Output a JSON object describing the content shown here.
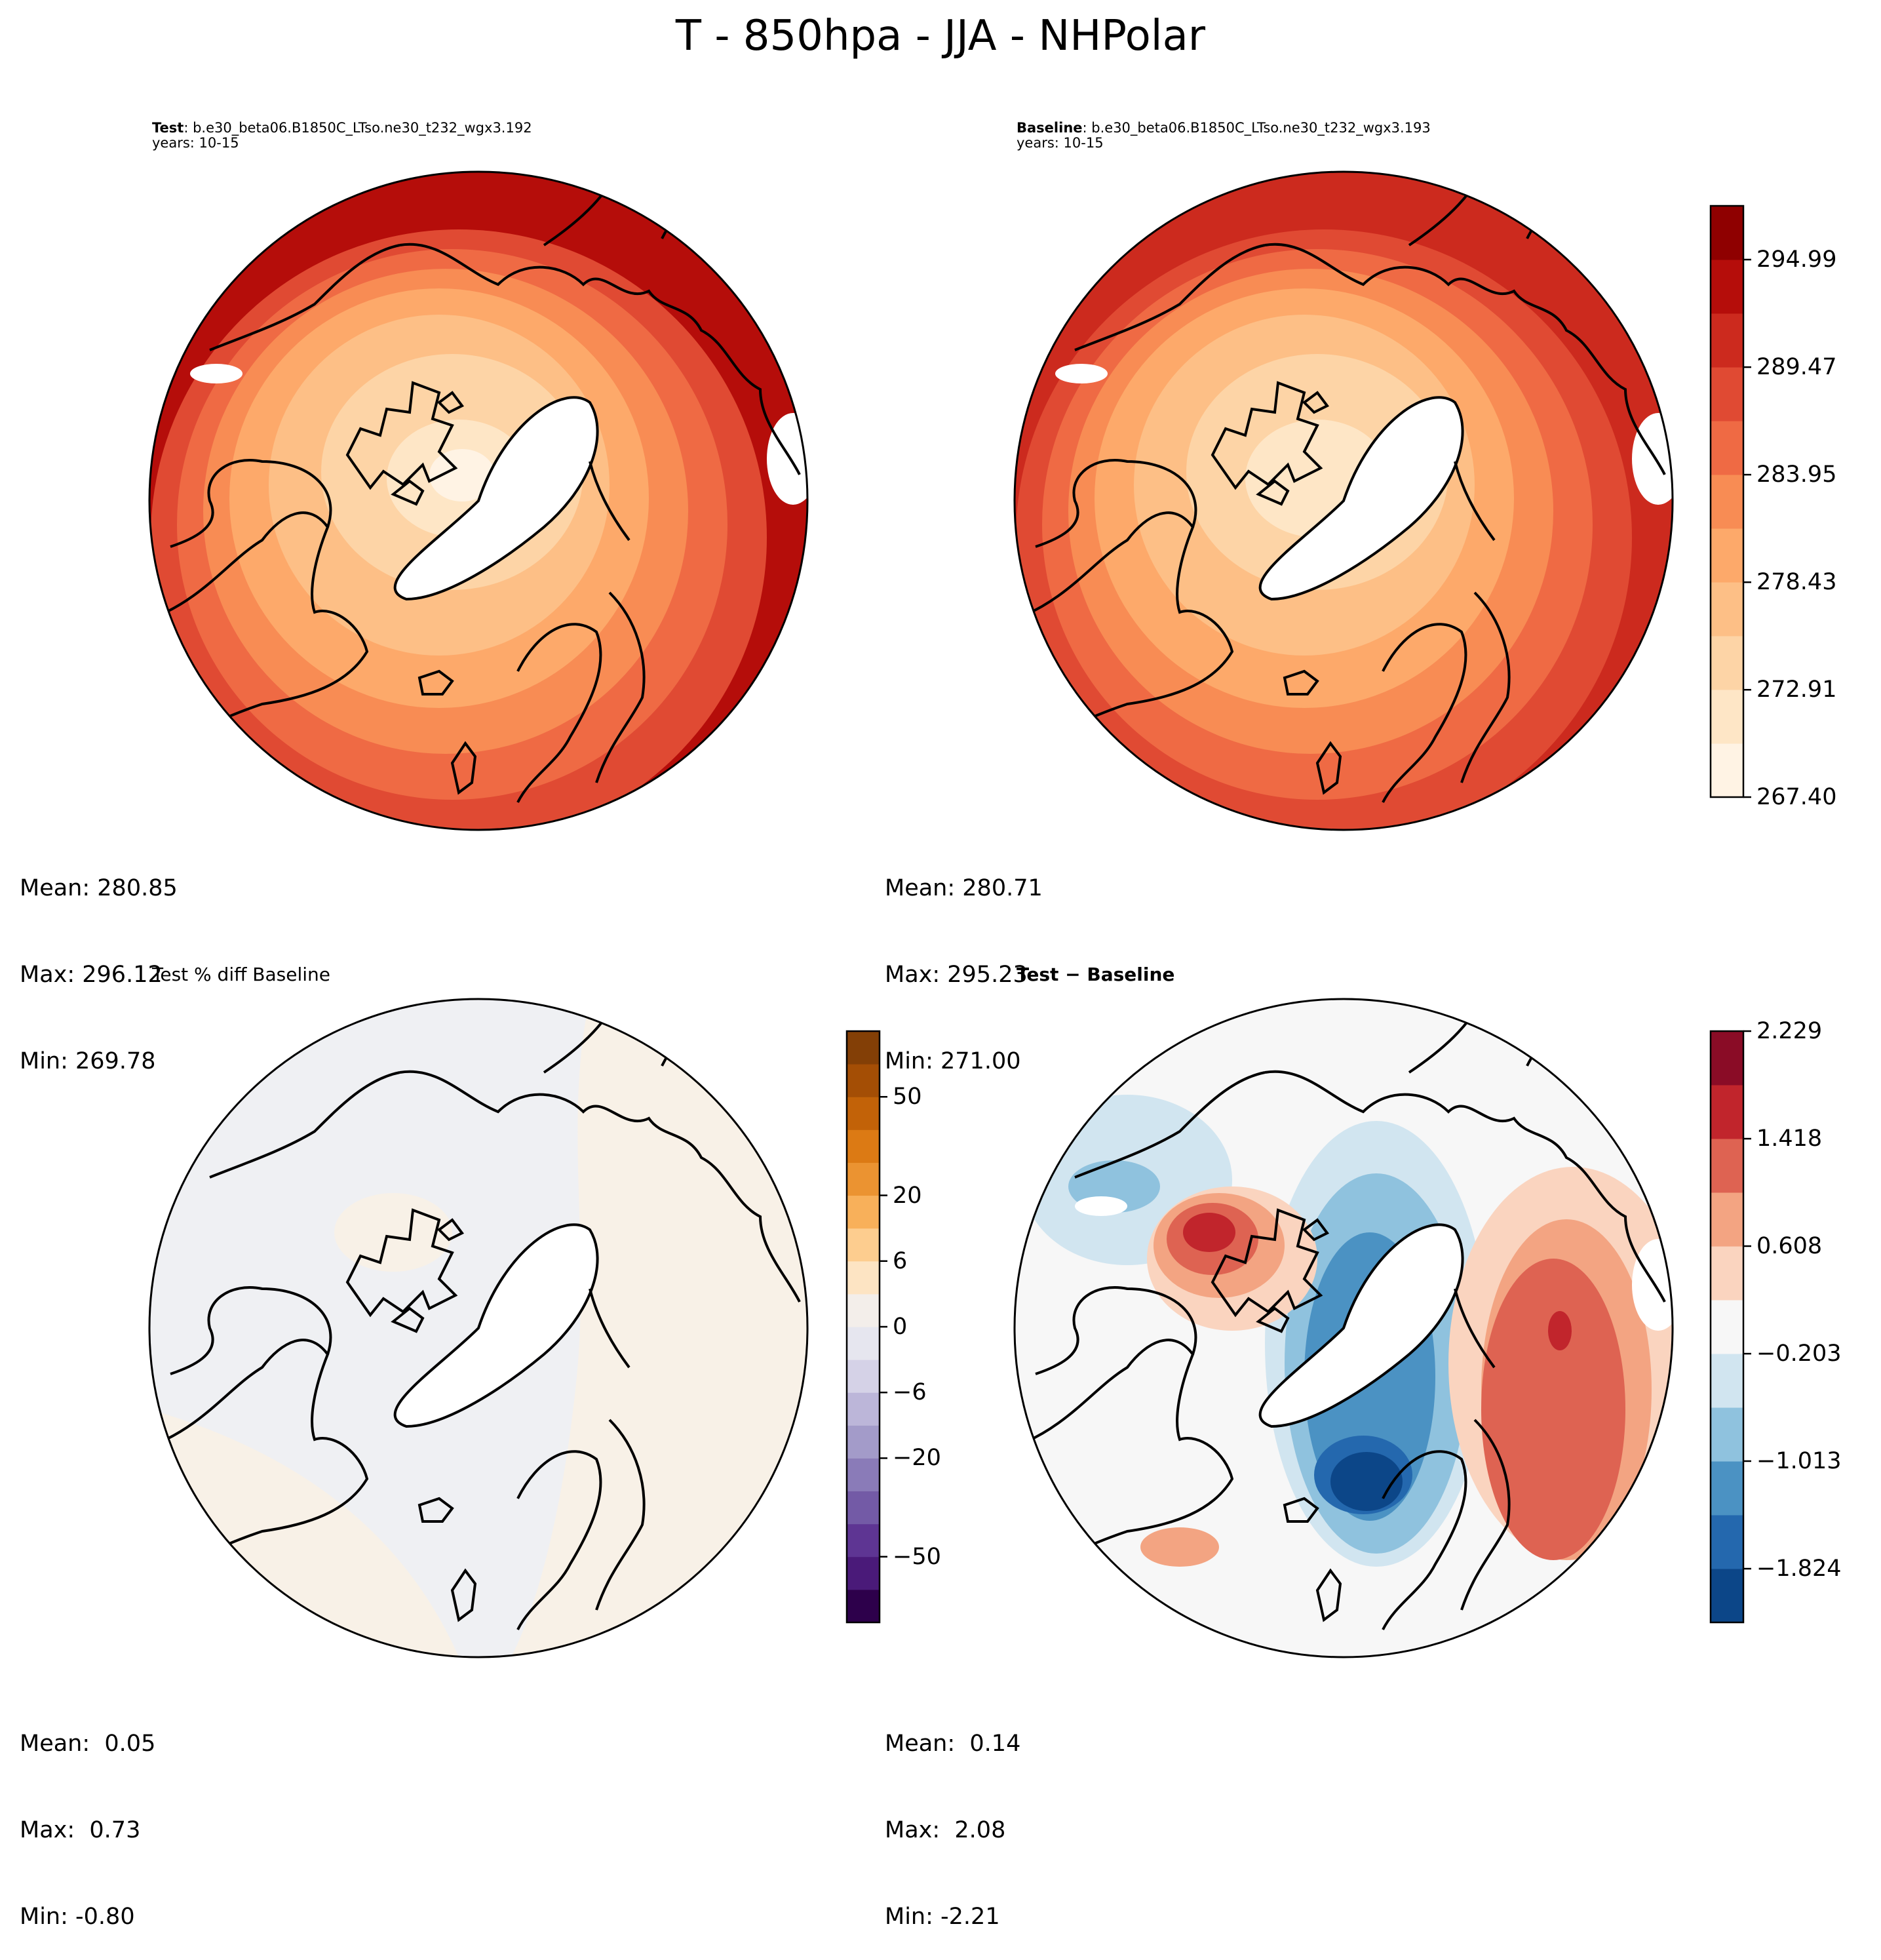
{
  "figure_title": "T - 850hpa - JJA - NHPolar",
  "chart_data": [
    {
      "type": "heatmap",
      "projection": "north polar stereographic",
      "title_bold": "Test",
      "title_text": ": b.e30_beta06.B1850C_LTso.ne30_t232_wgx3.192",
      "subtitle": "years: 10-15",
      "stats": {
        "mean": "Mean: 280.85",
        "max": "Max: 296.12",
        "min": "Min: 269.78"
      },
      "colormap": "OrRd",
      "shares_colorbar_with": "Baseline"
    },
    {
      "type": "heatmap",
      "projection": "north polar stereographic",
      "title_bold": "Baseline",
      "title_text": ": b.e30_beta06.B1850C_LTso.ne30_t232_wgx3.193",
      "subtitle": "years: 10-15",
      "stats": {
        "mean": "Mean: 280.71",
        "max": "Max: 295.23",
        "min": "Min: 271.00"
      },
      "colormap": "OrRd",
      "colorbar": {
        "range": [
          267.4,
          297.75
        ],
        "levels": 11,
        "ticks": [
          267.4,
          272.91,
          278.43,
          283.95,
          289.47,
          294.99
        ],
        "tick_labels": [
          "267.40",
          "272.91",
          "278.43",
          "283.95",
          "289.47",
          "294.99"
        ],
        "colors": [
          "#fff3e4",
          "#fee6c6",
          "#fdd4a6",
          "#fdbf86",
          "#fda96a",
          "#f88c54",
          "#ef6a44",
          "#e04a33",
          "#cc2a1e",
          "#b50d0a",
          "#8f0000"
        ]
      }
    },
    {
      "type": "heatmap",
      "projection": "north polar stereographic",
      "title_text": "Test % diff Baseline",
      "stats": {
        "mean": "Mean:  0.05",
        "max": "Max:  0.73",
        "min": "Min: -0.80"
      },
      "colormap": "PuOr_r",
      "colorbar": {
        "range": [
          -100,
          100
        ],
        "ticks": [
          -50,
          -20,
          -6,
          0,
          6,
          20,
          50
        ],
        "tick_labels": [
          "−50",
          "−20",
          "−6",
          "0",
          "6",
          "20",
          "50"
        ],
        "colors": [
          "#2d004b",
          "#4a1a79",
          "#5e3593",
          "#735aa6",
          "#8a7bb8",
          "#a39bc9",
          "#bcb6d9",
          "#d5d2e7",
          "#e6e6ef",
          "#f3eeea",
          "#fde4c3",
          "#fdcd8f",
          "#f8b05a",
          "#eb9331",
          "#dc7a14",
          "#c26208",
          "#a44e05",
          "#833f06"
        ]
      }
    },
    {
      "type": "heatmap",
      "projection": "north polar stereographic",
      "title_text": "Test − Baseline",
      "stats": {
        "mean": "Mean:  0.14",
        "max": "Max:  2.08",
        "min": "Min: -2.21"
      },
      "colormap": "RdBu_r",
      "colorbar": {
        "range": [
          -2.229,
          2.229
        ],
        "levels": 11,
        "ticks": [
          -1.824,
          -1.013,
          -0.203,
          0.608,
          1.418,
          2.229
        ],
        "tick_labels": [
          "−1.824",
          "−1.013",
          "−0.203",
          "0.608",
          "1.418",
          "2.229"
        ],
        "colors": [
          "#0c4688",
          "#2468ae",
          "#4b92c3",
          "#8fc2de",
          "#d1e5f0",
          "#f7f7f7",
          "#fad4bf",
          "#f3a482",
          "#de6352",
          "#c1252c",
          "#8a0c26"
        ]
      }
    }
  ]
}
